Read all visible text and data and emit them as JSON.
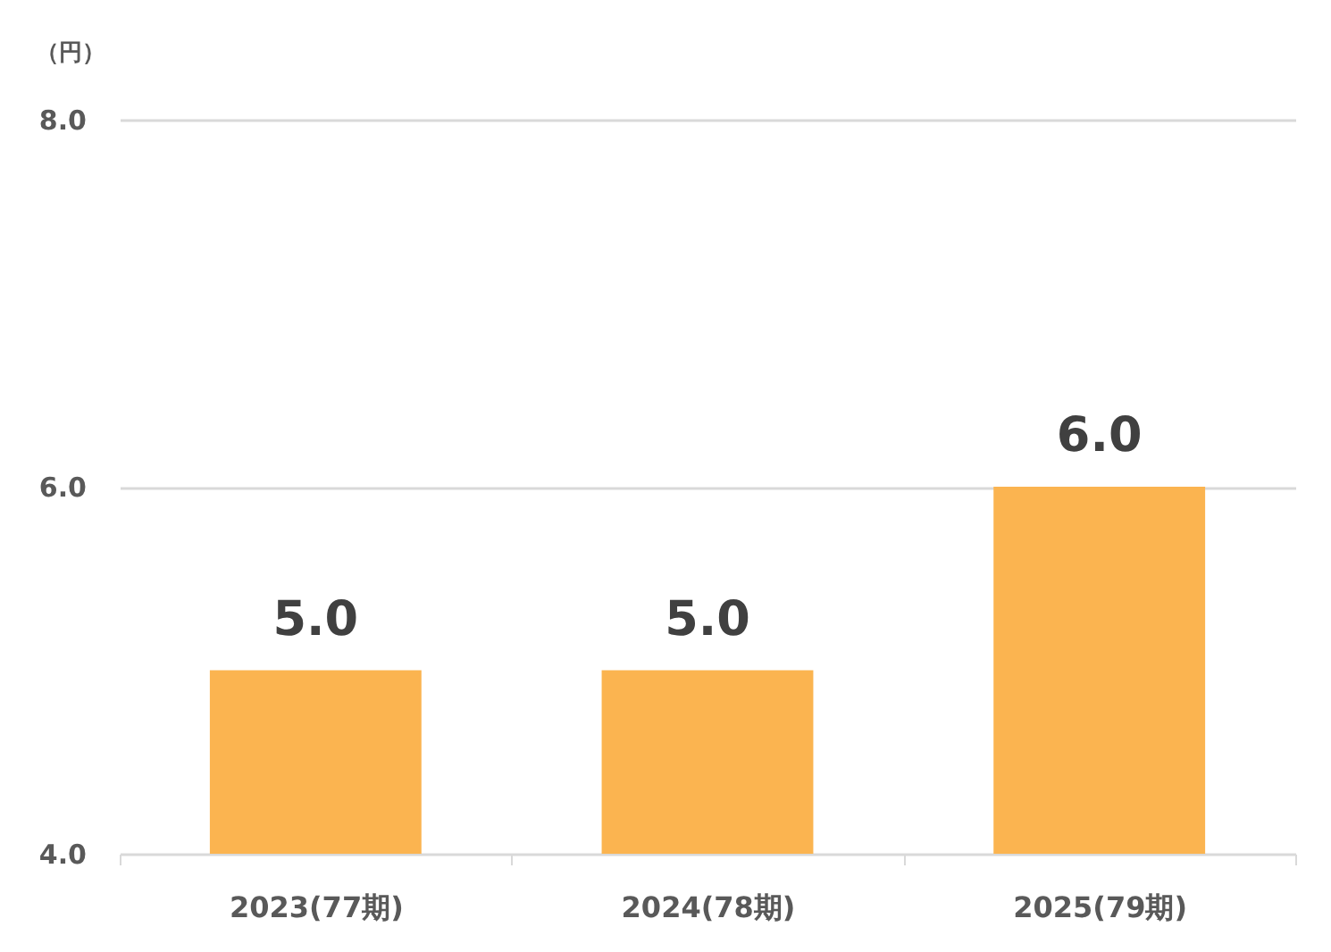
{
  "chart_data": {
    "type": "bar",
    "ylabel": "（円）",
    "categories": [
      "2023(77期)",
      "2024(78期)",
      "2025(79期)"
    ],
    "values": [
      5,
      5,
      6
    ],
    "color": "#fbb450",
    "value_labels": [
      "5.0",
      "5.0",
      "6.0"
    ],
    "ylim": [
      4,
      8
    ],
    "yticks": [
      {
        "value": 4,
        "label": "4.0"
      },
      {
        "value": 6,
        "label": "6.0"
      },
      {
        "value": 8,
        "label": "8.0"
      }
    ],
    "grid": true
  }
}
